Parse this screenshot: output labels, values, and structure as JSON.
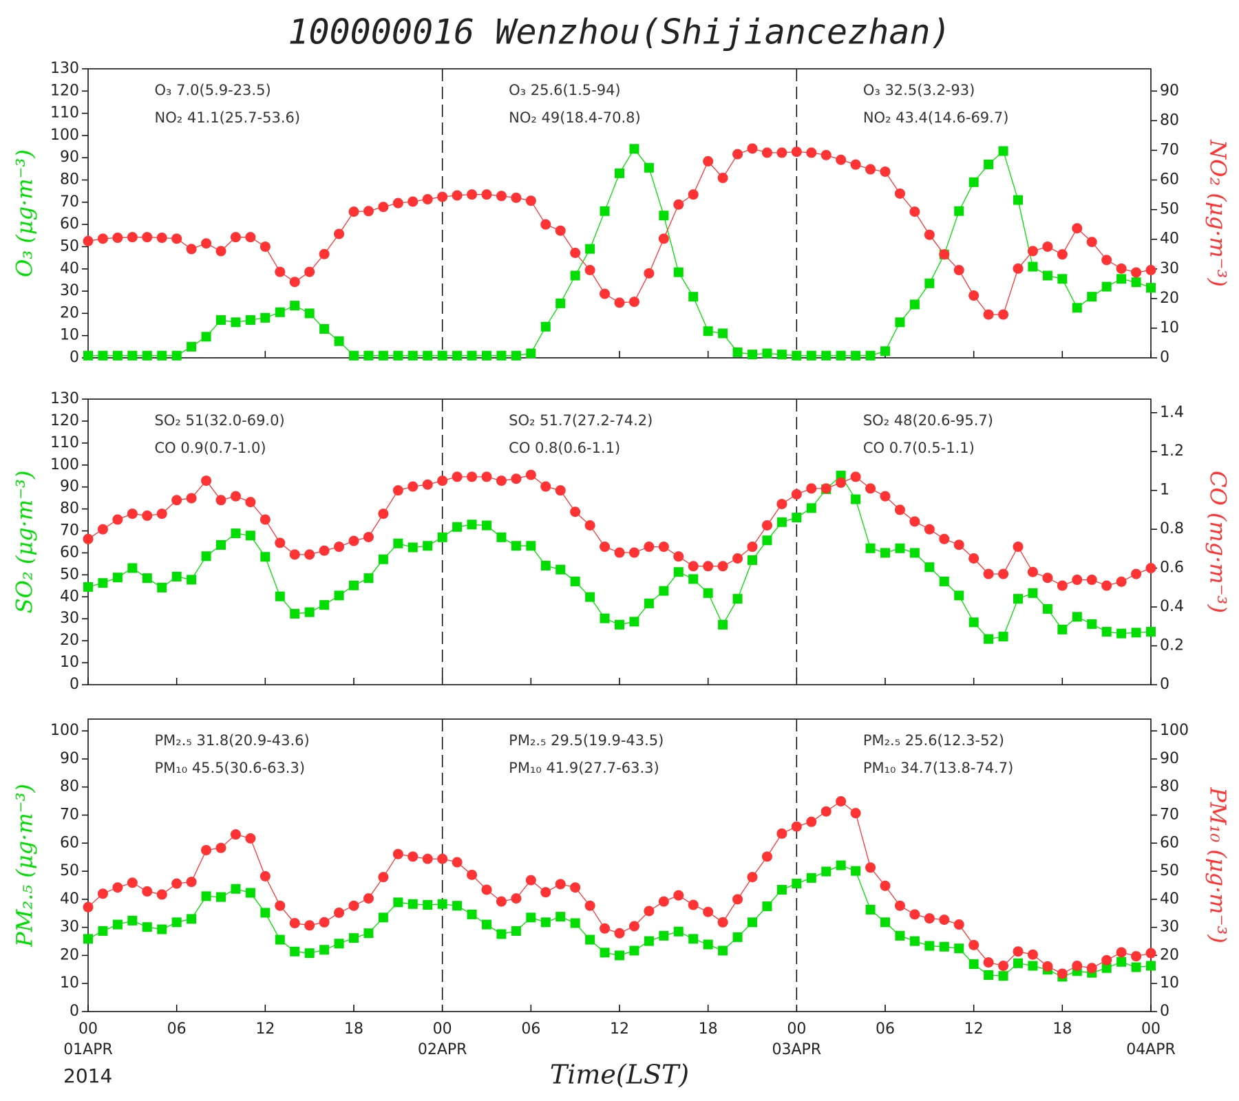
{
  "chart_data": {
    "title": "100000016  Wenzhou(Shijiancezhan)",
    "xlabel": "Time(LST)",
    "year": "2014",
    "x": [
      0,
      1,
      2,
      3,
      4,
      5,
      6,
      7,
      8,
      9,
      10,
      11,
      12,
      13,
      14,
      15,
      16,
      17,
      18,
      19,
      20,
      21,
      22,
      23,
      24,
      25,
      26,
      27,
      28,
      29,
      30,
      31,
      32,
      33,
      34,
      35,
      36,
      37,
      38,
      39,
      40,
      41,
      42,
      43,
      44,
      45,
      46,
      47,
      48,
      49,
      50,
      51,
      52,
      53,
      54,
      55,
      56,
      57,
      58,
      59,
      60,
      61,
      62,
      63,
      64,
      65,
      66,
      67,
      68,
      69,
      70,
      71,
      72
    ],
    "xlim": [
      0,
      72
    ],
    "xticks": [
      {
        "value": 0,
        "label": "00"
      },
      {
        "value": 6,
        "label": "06"
      },
      {
        "value": 12,
        "label": "12"
      },
      {
        "value": 18,
        "label": "18"
      },
      {
        "value": 24,
        "label": "00"
      },
      {
        "value": 30,
        "label": "06"
      },
      {
        "value": 36,
        "label": "12"
      },
      {
        "value": 42,
        "label": "18"
      },
      {
        "value": 48,
        "label": "00"
      },
      {
        "value": 54,
        "label": "06"
      },
      {
        "value": 60,
        "label": "12"
      },
      {
        "value": 66,
        "label": "18"
      },
      {
        "value": 72,
        "label": "00"
      }
    ],
    "date_labels": [
      {
        "value": 0,
        "label": "01APR"
      },
      {
        "value": 24,
        "label": "02APR"
      },
      {
        "value": 48,
        "label": "03APR"
      },
      {
        "value": 72,
        "label": "04APR"
      }
    ],
    "panels": [
      {
        "type": "line",
        "ylim": [
          0,
          130
        ],
        "yticks": [
          0,
          10,
          20,
          30,
          40,
          50,
          60,
          70,
          80,
          90,
          100,
          110,
          120,
          130
        ],
        "y2lim": [
          0,
          97.5
        ],
        "y2ticks": [
          0,
          10,
          20,
          30,
          40,
          50,
          60,
          70,
          80,
          90
        ],
        "annotations": [
          [
            "O₃ 7.0(5.9-23.5)",
            "NO₂ 41.1(25.7-53.6)"
          ],
          [
            "O₃ 25.6(1.5-94)",
            "NO₂ 49(18.4-70.8)"
          ],
          [
            "O₃ 32.5(3.2-93)",
            "NO₂ 43.4(14.6-69.7)"
          ]
        ],
        "series": [
          {
            "name": "O₃  (μg·m⁻³)",
            "color": "#00dd00",
            "marker": "square",
            "values": [
              1,
              1,
              1,
              1,
              1,
              1,
              1,
              5,
              9.5,
              17,
              16,
              17,
              18,
              20.5,
              23.5,
              20,
              13,
              7.5,
              1,
              1,
              1,
              1,
              1,
              1,
              1,
              1,
              1,
              1,
              1,
              1,
              2,
              14,
              24.5,
              37,
              49,
              66,
              83,
              94,
              85.5,
              64,
              38.5,
              27.5,
              12,
              11,
              2.5,
              1.5,
              2,
              1.5,
              1,
              1,
              1,
              1,
              1,
              1,
              3,
              16,
              24,
              33.5,
              46.5,
              66,
              79,
              87,
              93,
              71,
              41,
              37,
              35.5,
              22.5,
              27.5,
              32,
              35.5,
              34,
              31.5
            ]
          },
          {
            "name": "NO₂  (μg·m⁻³)",
            "color": "#ff3333",
            "marker": "circle",
            "axis": "y2",
            "values": [
              39.4,
              40.2,
              40.5,
              40.7,
              40.7,
              40.5,
              40.2,
              36.7,
              38.6,
              36,
              40.7,
              40.7,
              37.5,
              29,
              25.6,
              29,
              35,
              41.8,
              49.3,
              49.5,
              50.9,
              52.2,
              52.7,
              53.5,
              54.3,
              54.8,
              55.1,
              55.1,
              54.6,
              54,
              53,
              45,
              42.9,
              35.4,
              29.6,
              21.6,
              18.6,
              18.9,
              28.5,
              40.2,
              51.7,
              55.1,
              66.3,
              60.7,
              68.7,
              70.6,
              69.2,
              69.2,
              69.5,
              69.2,
              68.4,
              66.8,
              65.2,
              63.6,
              62.8,
              55.4,
              49.3,
              41.5,
              34.9,
              29.6,
              21,
              14.6,
              14.6,
              30.1,
              36,
              37.5,
              34.9,
              43.7,
              39.1,
              33,
              30.1,
              28.8,
              29.6
            ]
          }
        ]
      },
      {
        "type": "line",
        "ylim": [
          0,
          130
        ],
        "yticks": [
          0,
          10,
          20,
          30,
          40,
          50,
          60,
          70,
          80,
          90,
          100,
          110,
          120,
          130
        ],
        "y2lim": [
          0,
          1.47
        ],
        "y2ticks": [
          0,
          0.2,
          0.4,
          0.6,
          0.8,
          1,
          1.2,
          1.4
        ],
        "annotations": [
          [
            "SO₂ 51(32.0-69.0)",
            "CO 0.9(0.7-1.0)"
          ],
          [
            "SO₂ 51.7(27.2-74.2)",
            "CO 0.8(0.6-1.1)"
          ],
          [
            "SO₂ 48(20.6-95.7)",
            "CO 0.7(0.5-1.1)"
          ]
        ],
        "series": [
          {
            "name": "SO₂  (μg·m⁻³)",
            "color": "#00dd00",
            "marker": "square",
            "values": [
              44.5,
              46.3,
              48.8,
              53.1,
              48.5,
              44.2,
              49.2,
              47.8,
              58.5,
              63.6,
              68.9,
              67.9,
              58.2,
              40.2,
              32.3,
              33,
              36.3,
              40.6,
              45.2,
              48.5,
              57.1,
              64.3,
              62.5,
              63.2,
              67.1,
              71.8,
              72.9,
              72.5,
              67.1,
              63.2,
              63.2,
              54.2,
              52.4,
              47,
              39.9,
              30.2,
              27.3,
              28.7,
              37,
              42.7,
              51.3,
              48.1,
              41.7,
              27.3,
              39.1,
              56.7,
              65.7,
              74,
              76.1,
              80.4,
              89,
              95.2,
              84.4,
              62.1,
              60,
              62.1,
              60,
              53.5,
              47,
              40.6,
              28.4,
              20.8,
              21.9,
              39.1,
              41.7,
              34.5,
              25.1,
              30.9,
              27.6,
              24.1,
              23.3,
              23.7,
              24.1
            ]
          },
          {
            "name": "CO  (mg·m⁻³)",
            "color": "#ff3333",
            "marker": "circle",
            "axis": "y2",
            "values": [
              0.75,
              0.8,
              0.85,
              0.88,
              0.87,
              0.88,
              0.95,
              0.96,
              1.05,
              0.95,
              0.97,
              0.94,
              0.85,
              0.73,
              0.67,
              0.67,
              0.69,
              0.71,
              0.74,
              0.76,
              0.88,
              1,
              1.02,
              1.03,
              1.05,
              1.07,
              1.07,
              1.07,
              1.05,
              1.06,
              1.08,
              1.02,
              1,
              0.89,
              0.82,
              0.71,
              0.68,
              0.68,
              0.71,
              0.71,
              0.66,
              0.61,
              0.61,
              0.61,
              0.65,
              0.71,
              0.82,
              0.93,
              0.98,
              1.01,
              1.01,
              1.04,
              1.07,
              1.01,
              0.97,
              0.9,
              0.84,
              0.8,
              0.75,
              0.72,
              0.65,
              0.57,
              0.57,
              0.71,
              0.58,
              0.55,
              0.51,
              0.54,
              0.54,
              0.51,
              0.53,
              0.57,
              0.6
            ]
          }
        ]
      },
      {
        "type": "line",
        "ylim": [
          0,
          104.2
        ],
        "yticks": [
          0,
          10,
          20,
          30,
          40,
          50,
          60,
          70,
          80,
          90,
          100
        ],
        "y2lim": [
          0,
          104.2
        ],
        "y2ticks": [
          0,
          10,
          20,
          30,
          40,
          50,
          60,
          70,
          80,
          90,
          100
        ],
        "annotations": [
          [
            "PM₂.₅ 31.8(20.9-43.6)",
            "PM₁₀ 45.5(30.6-63.3)"
          ],
          [
            "PM₂.₅ 29.5(19.9-43.5)",
            "PM₁₀ 41.9(27.7-63.3)"
          ],
          [
            "PM₂.₅ 25.6(12.3-52)",
            "PM₁₀ 34.7(13.8-74.7)"
          ]
        ],
        "series": [
          {
            "name": "PM₂.₅  (μg·m⁻³)",
            "color": "#00dd00",
            "marker": "square",
            "values": [
              25.9,
              28.7,
              31,
              32.4,
              30.1,
              29.3,
              31.8,
              33,
              41.1,
              40.8,
              43.7,
              42.3,
              35.2,
              25.6,
              21.4,
              20.8,
              22,
              24.2,
              26.2,
              27.9,
              33.5,
              38.9,
              38.3,
              38,
              38.3,
              37.7,
              34.6,
              31,
              27.6,
              28.7,
              33.5,
              31.8,
              33.8,
              31.5,
              25.6,
              21,
              20,
              21.7,
              25.1,
              27,
              28.5,
              25.9,
              23.9,
              21.7,
              26.5,
              31.8,
              37.5,
              43.4,
              45.6,
              47.6,
              49.9,
              52.1,
              50.1,
              36.3,
              31.8,
              27,
              25.1,
              23.4,
              23.1,
              22.5,
              16.9,
              13,
              12.7,
              17.2,
              16.3,
              14.9,
              12.4,
              14.4,
              13.8,
              15.5,
              17.7,
              15.8,
              16.3
            ]
          },
          {
            "name": "PM₁₀  (μg·m⁻³)",
            "color": "#ff3333",
            "marker": "circle",
            "axis": "y2",
            "values": [
              37.2,
              42,
              44.2,
              45.9,
              42.8,
              41.7,
              45.6,
              46.2,
              57.5,
              58.3,
              63.1,
              61.7,
              48.2,
              37.7,
              31.5,
              30.7,
              31.8,
              35.2,
              37.7,
              40.3,
              47.9,
              56.1,
              55.2,
              54.4,
              54.4,
              53.2,
              48.7,
              43.4,
              39.2,
              40.3,
              46.8,
              42.5,
              45.4,
              44.2,
              37.7,
              29.6,
              27.9,
              30.4,
              35.8,
              39.2,
              41.4,
              38,
              35.5,
              31.8,
              40,
              47.9,
              55.2,
              63.4,
              65.9,
              67.6,
              71.3,
              74.9,
              70.7,
              51.3,
              44.8,
              37.7,
              34.6,
              33.2,
              32.7,
              31,
              23.7,
              17.5,
              16.3,
              21.4,
              20.3,
              16.1,
              13.5,
              16.3,
              15.5,
              18.3,
              21.1,
              19.7,
              20.8
            ]
          }
        ]
      }
    ]
  }
}
